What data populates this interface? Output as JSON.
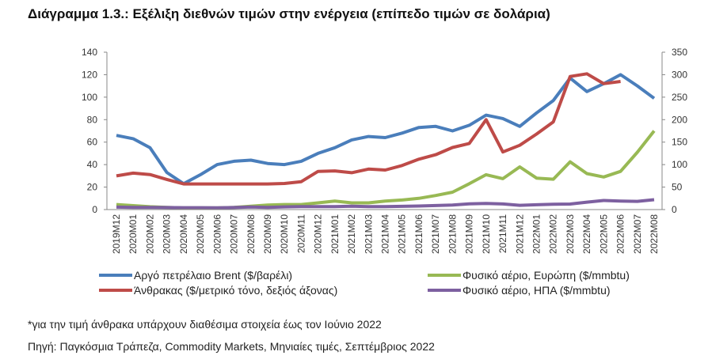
{
  "title": "Διάγραμμα 1.3.: Εξέλιξη διεθνών τιμών στην ενέργεια (επίπεδο τιμών σε δολάρια)",
  "footnote": "*για την τιμή άνθρακα υπάρχουν διαθέσιμα στοιχεία έως τον Ιούνιο 2022",
  "source": "Πηγή: Παγκόσμια Τράπεζα, Commodity Markets, Μηνιαίες τιμές, Σεπτέμβριος 2022",
  "chart_data": {
    "type": "line",
    "title": "",
    "ylim_left": [
      0,
      140
    ],
    "yticks_left": [
      0,
      20,
      40,
      60,
      80,
      100,
      120,
      140
    ],
    "ylim_right": [
      0,
      350
    ],
    "yticks_right": [
      0,
      50,
      100,
      150,
      200,
      250,
      300,
      350
    ],
    "grid": false,
    "legend_placement": "bottom",
    "categories": [
      "2019M12",
      "2020M01",
      "2020M02",
      "2020M03",
      "2020M04",
      "2020M05",
      "2020M06",
      "2020M07",
      "2020M08",
      "2020M09",
      "2020M10",
      "2020M11",
      "2020M12",
      "2021M01",
      "2021M02",
      "2021M03",
      "2021M04",
      "2021M05",
      "2021M06",
      "2021M07",
      "2021M08",
      "2021M09",
      "2021M10",
      "2021M11",
      "2021M12",
      "2022M01",
      "2022M02",
      "2022M03",
      "2022M04",
      "2022M05",
      "2022M06",
      "2022M07",
      "2022M08"
    ],
    "series": [
      {
        "name": "Αργό πετρέλαιο Brent ($/βαρέλι)",
        "axis": "left",
        "color": "#4a7ebb",
        "values": [
          66,
          63,
          55,
          33,
          23,
          31,
          40,
          43,
          44,
          41,
          40,
          43,
          50,
          55,
          62,
          65,
          64,
          68,
          73,
          74,
          70,
          75,
          84,
          81,
          74,
          86,
          97,
          117,
          105,
          112,
          120,
          110,
          99
        ]
      },
      {
        "name": "Άνθρακας ($/μετρικό τόνο, δεξιός άξονας)",
        "axis": "right",
        "color": "#be4b48",
        "values": [
          75,
          81,
          78,
          67,
          57,
          57,
          57,
          57,
          57,
          57,
          58,
          62,
          85,
          86,
          82,
          90,
          88,
          98,
          112,
          122,
          138,
          147,
          200,
          128,
          143,
          168,
          195,
          296,
          302,
          280,
          285,
          null,
          null
        ]
      },
      {
        "name": "Φυσικό αέριο, Ευρώπη ($/mmbtu)",
        "axis": "left",
        "color": "#98b954",
        "values": [
          4.5,
          3.5,
          2.5,
          2,
          1.5,
          1.5,
          1.5,
          2,
          3,
          4,
          4.5,
          4.5,
          6,
          7.5,
          6,
          6,
          7.5,
          8.5,
          10,
          12.5,
          15.5,
          23,
          31,
          27.5,
          38,
          28,
          27,
          42.5,
          32,
          29,
          34,
          51,
          70
        ]
      },
      {
        "name": "Φυσικό αέριο, ΗΠΑ ($/mmbtu)",
        "axis": "left",
        "color": "#7d60a0",
        "values": [
          2.2,
          2.0,
          1.9,
          1.8,
          1.7,
          1.7,
          1.6,
          1.8,
          2.3,
          1.9,
          2.4,
          2.6,
          2.6,
          2.7,
          3.0,
          2.6,
          2.7,
          2.9,
          3.2,
          3.6,
          4.1,
          5.1,
          5.5,
          5.0,
          3.8,
          4.3,
          4.7,
          4.9,
          6.6,
          8.1,
          7.6,
          7.3,
          8.8
        ]
      }
    ]
  }
}
